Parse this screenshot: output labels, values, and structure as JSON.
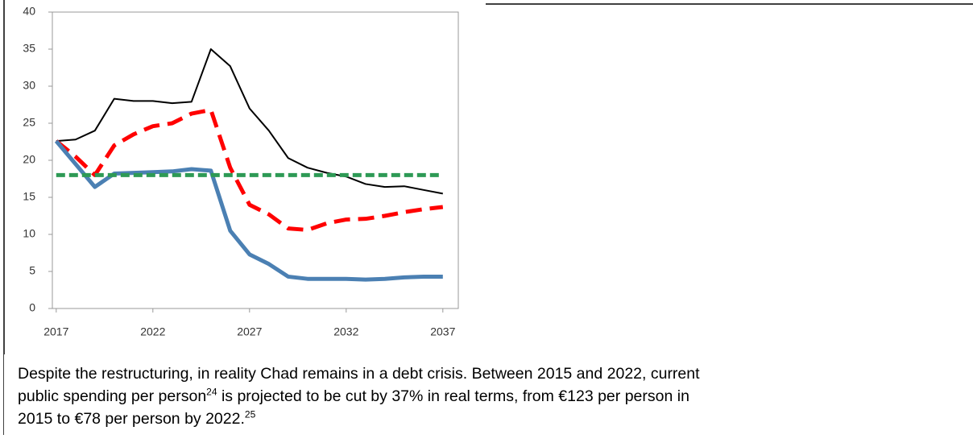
{
  "chart_data": {
    "type": "line",
    "x": [
      2017,
      2018,
      2019,
      2020,
      2021,
      2022,
      2023,
      2024,
      2025,
      2026,
      2027,
      2028,
      2029,
      2030,
      2031,
      2032,
      2033,
      2034,
      2035,
      2036,
      2037
    ],
    "series": [
      {
        "color": "#000000",
        "width": 2,
        "dash": "none",
        "values": [
          22.6,
          22.8,
          24,
          28.3,
          28,
          28,
          27.7,
          27.9,
          35,
          32.7,
          27,
          24,
          20.3,
          19,
          18.3,
          17.8,
          16.8,
          16.4,
          16.5,
          16,
          15.5
        ]
      },
      {
        "color": "#ff0000",
        "width": 5,
        "dash": "20 10",
        "values": [
          22.6,
          20.5,
          18,
          22,
          23.5,
          24.6,
          25,
          26.3,
          26.8,
          19,
          14,
          12.7,
          10.8,
          10.6,
          11.5,
          12,
          12.1,
          12.5,
          13,
          13.4,
          13.7
        ]
      },
      {
        "color": "#4b80b3",
        "width": 5,
        "dash": "none",
        "values": [
          22.6,
          19.5,
          16.4,
          18.2,
          18.3,
          18.4,
          18.5,
          18.8,
          18.6,
          10.5,
          7.3,
          6,
          4.3,
          4,
          4,
          4,
          3.9,
          4,
          4.2,
          4.3,
          4.3
        ]
      },
      {
        "color": "#2e9a55",
        "width": 5,
        "dash": "11 5",
        "values": [
          18,
          18,
          18,
          18,
          18,
          18,
          18,
          18,
          18,
          18,
          18,
          18,
          18,
          18,
          18,
          18,
          18,
          18,
          18,
          18,
          18
        ]
      }
    ],
    "xlim": [
      2016.8,
      2037.8
    ],
    "xticks": [
      2017,
      2022,
      2027,
      2032,
      2037
    ],
    "ylim": [
      0,
      40
    ],
    "yticks": [
      0,
      5,
      10,
      15,
      20,
      25,
      30,
      35,
      40
    ]
  },
  "paragraph": {
    "lines": [
      [
        {
          "text": "Despite the restructuring, in reality Chad remains in a debt crisis. Between 2015 and 2022, current"
        }
      ],
      [
        {
          "text": "public spending per person"
        },
        {
          "sup": "24"
        },
        {
          "text": " is projected to be cut by 37% in real terms, from €123 per person in"
        }
      ],
      [
        {
          "text": "2015 to €78 per person by 2022."
        },
        {
          "sup": "25"
        }
      ]
    ]
  }
}
